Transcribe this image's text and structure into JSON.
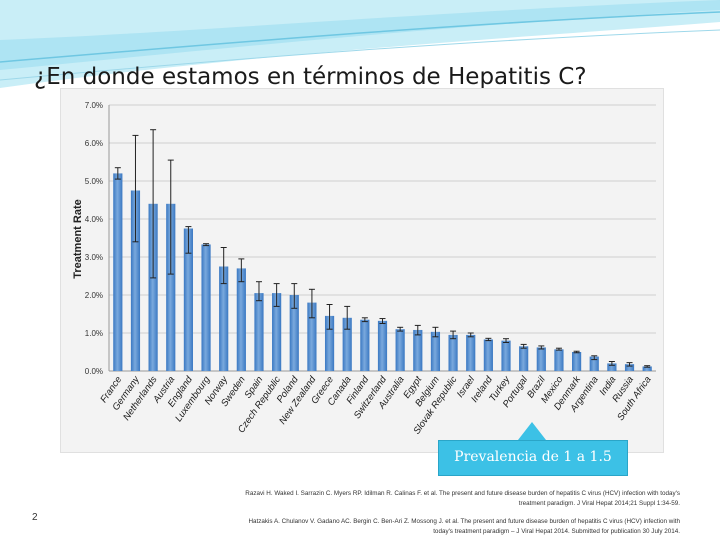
{
  "slide": {
    "title": "¿En donde estamos en términos de Hepatitis C?",
    "number": "2",
    "callout": "Prevalencia de 1 a 1.5",
    "references": [
      {
        "line1": "Razavi H. Waked I. Sarrazin C. Myers RP. Idilman R. Calinas F. et al. The present and future disease burden of hepatitis C virus (HCV) infection with today's",
        "line2": "treatment paradigm. J Viral Hepat 2014;21 Suppl 1:34-59."
      },
      {
        "line1": "Hatzakis A. Chulanov V. Gadano AC. Bergin C. Ben-Ari Z. Mossong J. et al. The present and future disease burden of hepatitis C virus (HCV) infection with",
        "line2": "today's treatment paradigm – J Viral Hepat 2014. Submitted for publication 30 July 2014."
      }
    ]
  },
  "colors": {
    "bar": "#3a78c2",
    "bar_light": "#7aa9dd",
    "callout": "#3cc1e6",
    "swoosh": "#8fd6ea"
  },
  "chart_data": {
    "type": "bar",
    "ylabel": "Treatment Rate",
    "ylim": [
      0,
      7
    ],
    "yticks": [
      "0.0%",
      "1.0%",
      "2.0%",
      "3.0%",
      "4.0%",
      "5.0%",
      "6.0%",
      "7.0%"
    ],
    "categories": [
      "France",
      "Germany",
      "Netherlands",
      "Austria",
      "England",
      "Luxembourg",
      "Norway",
      "Sweden",
      "Spain",
      "Czech Republic",
      "Poland",
      "New Zealand",
      "Greece",
      "Canada",
      "Finland",
      "Switzerland",
      "Australia",
      "Egypt",
      "Belgium",
      "Slovak Republic",
      "Israel",
      "Ireland",
      "Turkey",
      "Portugal",
      "Brazil",
      "Mexico",
      "Denmark",
      "Argentina",
      "India",
      "Russia",
      "South Africa"
    ],
    "values": [
      5.2,
      4.75,
      4.4,
      4.4,
      3.75,
      3.33,
      2.75,
      2.7,
      2.05,
      2.05,
      2.0,
      1.8,
      1.45,
      1.4,
      1.35,
      1.32,
      1.1,
      1.08,
      1.03,
      0.95,
      0.95,
      0.83,
      0.8,
      0.65,
      0.62,
      0.57,
      0.5,
      0.38,
      0.2,
      0.18,
      0.12
    ],
    "error_low": [
      5.05,
      3.4,
      2.45,
      2.55,
      3.1,
      3.3,
      2.3,
      2.35,
      1.85,
      1.7,
      1.65,
      1.4,
      1.1,
      1.1,
      1.3,
      1.25,
      1.05,
      0.95,
      0.9,
      0.85,
      0.9,
      0.8,
      0.75,
      0.6,
      0.58,
      0.55,
      0.48,
      0.3,
      0.15,
      0.13,
      0.1
    ],
    "error_high": [
      5.35,
      6.2,
      6.35,
      5.55,
      3.8,
      3.35,
      3.25,
      2.95,
      2.35,
      2.3,
      2.3,
      2.15,
      1.75,
      1.7,
      1.4,
      1.38,
      1.15,
      1.2,
      1.15,
      1.05,
      1.0,
      0.86,
      0.85,
      0.7,
      0.66,
      0.6,
      0.52,
      0.4,
      0.25,
      0.22,
      0.14
    ],
    "title": "",
    "xlabel": ""
  }
}
